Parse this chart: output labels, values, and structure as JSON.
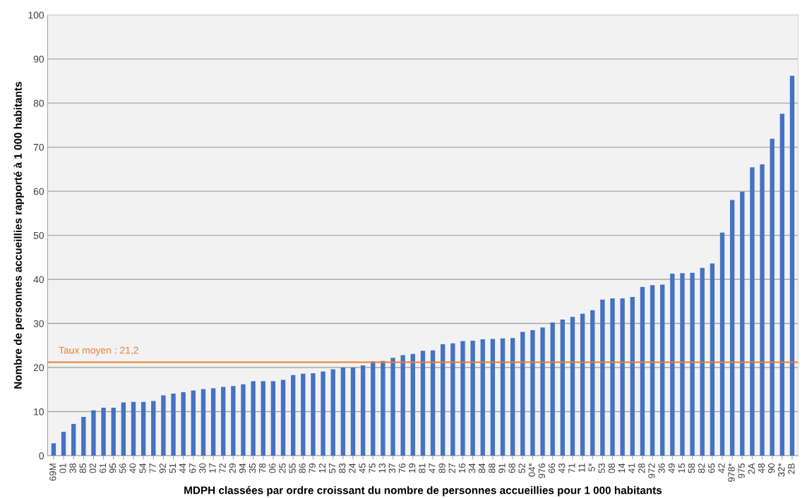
{
  "chart_data": {
    "type": "bar",
    "xlabel": "MDPH classées par ordre croissant du nombre de personnes accueillies pour 1 000 habitants",
    "ylabel": "Nombre de personnes accueillies rapporté à 1 000 habitants",
    "categories": [
      "69M",
      "01",
      "38",
      "85",
      "02",
      "61",
      "95",
      "56",
      "40",
      "54",
      "77",
      "92",
      "51",
      "44",
      "67",
      "30",
      "17",
      "72",
      "29",
      "94",
      "35",
      "78",
      "06",
      "25",
      "55",
      "86",
      "79",
      "12",
      "57",
      "83",
      "24",
      "45",
      "75",
      "13",
      "37",
      "76",
      "19",
      "81",
      "47",
      "89",
      "27",
      "16",
      "34",
      "84",
      "88",
      "91",
      "68",
      "52",
      "04*",
      "976",
      "66",
      "43",
      "71",
      "11",
      "5*",
      "53",
      "08",
      "14",
      "41",
      "28",
      "972",
      "36",
      "49",
      "15",
      "58",
      "82",
      "65",
      "42",
      "978*",
      "975",
      "2A",
      "48",
      "90",
      "32*",
      "2B"
    ],
    "values": [
      2.8,
      5.4,
      7.2,
      8.8,
      10.3,
      10.9,
      10.9,
      12.1,
      12.2,
      12.2,
      12.4,
      13.7,
      14.1,
      14.4,
      14.8,
      15.1,
      15.3,
      15.6,
      15.8,
      16.2,
      16.9,
      16.9,
      16.9,
      17.2,
      18.3,
      18.6,
      18.7,
      19.1,
      19.6,
      20.0,
      20.0,
      20.5,
      21.4,
      21.5,
      22.2,
      22.8,
      23.1,
      23.8,
      23.9,
      25.3,
      25.5,
      26.0,
      26.1,
      26.4,
      26.5,
      26.6,
      26.7,
      28.1,
      28.5,
      29.1,
      30.2,
      30.9,
      31.5,
      32.2,
      33.0,
      35.4,
      35.7,
      35.7,
      36.0,
      38.3,
      38.7,
      38.8,
      41.3,
      41.4,
      41.5,
      42.6,
      43.6,
      50.6,
      58.0,
      59.9,
      65.4,
      66.1,
      71.9,
      77.6,
      86.2
    ],
    "color": "#4472c4",
    "ylim": [
      0,
      100
    ],
    "yticks": [
      0,
      10,
      20,
      30,
      40,
      50,
      60,
      70,
      80,
      90,
      100
    ],
    "grid": "y",
    "ref_lines": [
      {
        "axis": "y",
        "value": 21.2,
        "label": "Taux moyen : 21,2",
        "color": "#ed7d31"
      }
    ]
  }
}
